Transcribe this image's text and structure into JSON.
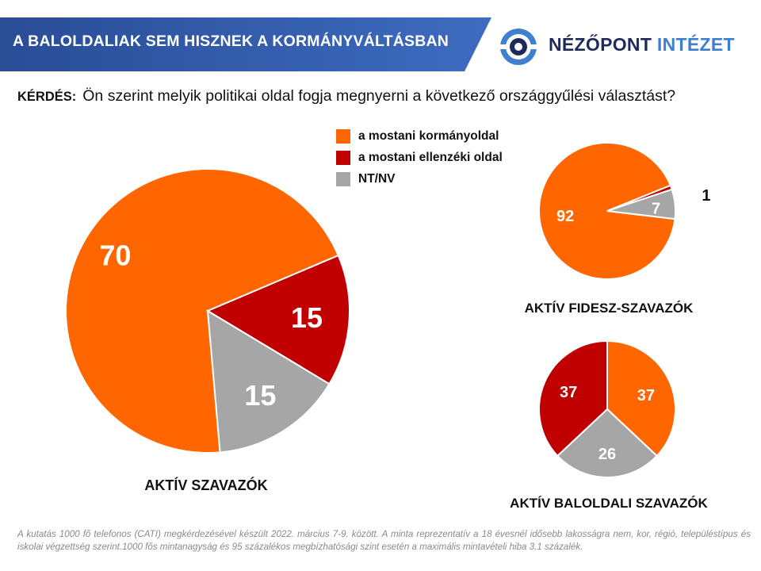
{
  "header": {
    "banner_title": "A BALOLDALIAK SEM HISZNEK A KORMÁNYVÁLTÁSBAN",
    "logo_text_dark": "NÉZŐPONT",
    "logo_text_blue": "INTÉZET",
    "banner_color": "#2a4d96",
    "logo_dark_color": "#1e2b5a",
    "logo_blue_color": "#3f7fd0"
  },
  "question": {
    "label": "KÉRDÉS:",
    "text": "Ön szerint melyik politikai oldal fogja megnyerni a következő országgyűlési választást?"
  },
  "legend": [
    {
      "label": "a mostani kormányoldal",
      "color": "#ff6600"
    },
    {
      "label": "a mostani ellenzéki oldal",
      "color": "#c00000"
    },
    {
      "label": "NT/NV",
      "color": "#a6a6a6"
    }
  ],
  "chart_data": [
    {
      "type": "pie",
      "title": "AKTÍV SZAVAZÓK",
      "categories": [
        "a mostani kormányoldal",
        "a mostani ellenzéki oldal",
        "NT/NV"
      ],
      "values": [
        70,
        15,
        15
      ],
      "labels": [
        "70",
        "15",
        "15"
      ],
      "colors": [
        "#ff6600",
        "#c00000",
        "#a6a6a6"
      ]
    },
    {
      "type": "pie",
      "title": "AKTÍV FIDESZ-SZAVAZÓK",
      "categories": [
        "a mostani kormányoldal",
        "a mostani ellenzéki oldal",
        "NT/NV"
      ],
      "values": [
        92,
        1,
        7
      ],
      "labels": [
        "92",
        "1",
        "7"
      ],
      "colors": [
        "#ff6600",
        "#c00000",
        "#a6a6a6"
      ]
    },
    {
      "type": "pie",
      "title": "AKTÍV BALOLDALI SZAVAZÓK",
      "categories": [
        "a mostani kormányoldal",
        "a mostani ellenzéki oldal",
        "NT/NV"
      ],
      "values": [
        37,
        37,
        26
      ],
      "labels": [
        "37",
        "37",
        "26"
      ],
      "colors": [
        "#ff6600",
        "#c00000",
        "#a6a6a6"
      ]
    }
  ],
  "footnote": "A kutatás 1000 fő telefonos (CATI) megkérdezésével készült 2022. március 7-9. között. A minta reprezentatív a 18 évesnél idősebb lakosságra nem, kor, régió, településtípus és iskolai végzettség szerint.1000 fős mintanagyság és 95 százalékos megbízhatósági szint esetén a maximális mintavételi hiba 3,1 százalék."
}
